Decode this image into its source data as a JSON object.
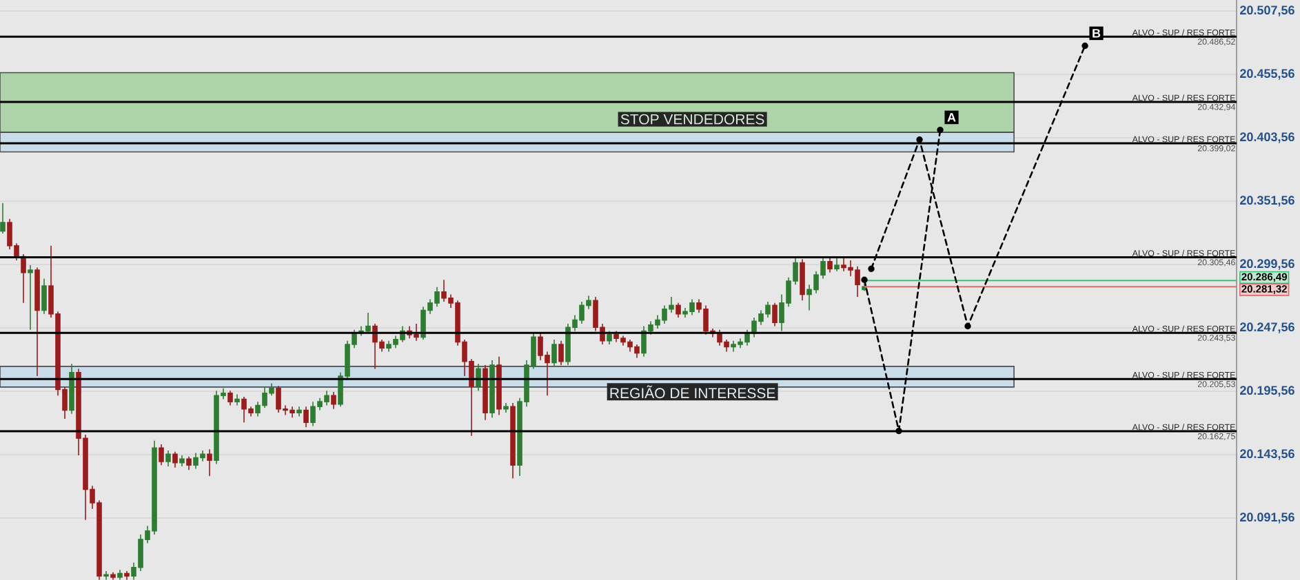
{
  "chart_data": {
    "type": "candlestick",
    "categories": [
      null,
      null,
      null,
      null,
      null,
      null,
      null,
      null,
      null,
      null,
      null,
      null,
      null,
      null,
      null,
      null,
      null,
      null,
      null,
      null,
      null,
      null,
      null,
      null,
      null,
      null,
      null,
      null,
      null,
      null,
      null,
      null,
      null,
      null,
      null,
      null,
      null,
      null,
      null,
      null,
      null,
      null,
      null,
      null,
      null,
      null,
      null,
      null,
      null,
      null,
      null,
      null,
      null,
      null,
      null,
      null,
      null,
      null,
      null,
      null,
      null,
      null,
      null,
      null,
      null,
      null,
      null,
      null,
      null,
      null,
      null,
      null,
      null,
      null,
      null,
      null,
      null,
      null,
      null,
      null,
      null,
      null,
      null,
      null,
      null,
      null,
      null,
      null,
      null,
      null,
      null,
      null,
      null,
      null,
      null,
      null,
      null,
      null,
      null,
      null,
      null,
      null,
      null,
      null,
      null,
      null,
      null,
      null,
      null,
      null,
      null,
      null,
      null,
      null,
      null,
      null,
      null,
      null,
      null,
      null,
      null,
      null,
      null,
      null,
      null,
      null,
      null,
      null,
      null,
      null,
      null,
      null,
      null,
      null,
      null,
      null,
      null,
      null,
      null,
      null,
      null,
      null,
      null,
      null,
      null,
      null,
      null,
      null,
      null,
      null,
      null,
      null,
      null,
      null,
      null,
      null,
      null,
      null,
      null,
      null,
      null,
      null,
      null,
      null,
      null,
      null,
      null,
      null,
      null,
      null,
      null,
      null,
      null,
      null,
      null,
      null,
      null,
      null,
      null,
      null
    ],
    "ohlc": [
      [
        20327,
        20350,
        20325,
        20334
      ],
      [
        20334,
        20337,
        20312,
        20315
      ],
      [
        20315,
        20317,
        20303,
        20306
      ],
      [
        20306,
        20308,
        20268,
        20293
      ],
      [
        20293,
        20299,
        20246,
        20295
      ],
      [
        20295,
        20297,
        20208,
        20262
      ],
      [
        20262,
        20288,
        20259,
        20282
      ],
      [
        20282,
        20315,
        20256,
        20259
      ],
      [
        20259,
        20261,
        20192,
        20197
      ],
      [
        20197,
        20199,
        20173,
        20180
      ],
      [
        20180,
        20218,
        20177,
        20211
      ],
      [
        20211,
        20214,
        20143,
        20157
      ],
      [
        20157,
        20160,
        20090,
        20115
      ],
      [
        20115,
        20118,
        20099,
        20104
      ],
      [
        20104,
        20106,
        20041,
        20044
      ],
      [
        20044,
        20048,
        20041,
        20045
      ],
      [
        20045,
        20047,
        20041,
        20043
      ],
      [
        20043,
        20049,
        20041,
        20046
      ],
      [
        20046,
        20048,
        20041,
        20044
      ],
      [
        20044,
        20055,
        20041,
        20051
      ],
      [
        20051,
        20078,
        20048,
        20074
      ],
      [
        20074,
        20085,
        20071,
        20081
      ],
      [
        20081,
        20155,
        20078,
        20149
      ],
      [
        20149,
        20152,
        20135,
        20138
      ],
      [
        20138,
        20147,
        20134,
        20144
      ],
      [
        20144,
        20146,
        20133,
        20137
      ],
      [
        20137,
        20143,
        20134,
        20140
      ],
      [
        20140,
        20142,
        20131,
        20135
      ],
      [
        20135,
        20145,
        20132,
        20141
      ],
      [
        20141,
        20147,
        20138,
        20144
      ],
      [
        20144,
        20148,
        20126,
        20139
      ],
      [
        20139,
        20196,
        20136,
        20192
      ],
      [
        20192,
        20198,
        20189,
        20194
      ],
      [
        20194,
        20196,
        20184,
        20187
      ],
      [
        20187,
        20193,
        20184,
        20189
      ],
      [
        20189,
        20191,
        20170,
        20181
      ],
      [
        20181,
        20183,
        20175,
        20178
      ],
      [
        20178,
        20187,
        20175,
        20184
      ],
      [
        20184,
        20199,
        20182,
        20194
      ],
      [
        20194,
        20202,
        20192,
        20198
      ],
      [
        20198,
        20200,
        20178,
        20181
      ],
      [
        20181,
        20184,
        20176,
        20180
      ],
      [
        20180,
        20183,
        20174,
        20178
      ],
      [
        20178,
        20183,
        20175,
        20180
      ],
      [
        20180,
        20183,
        20166,
        20170
      ],
      [
        20170,
        20187,
        20167,
        20183
      ],
      [
        20183,
        20190,
        20180,
        20187
      ],
      [
        20187,
        20196,
        20184,
        20192
      ],
      [
        20192,
        20195,
        20181,
        20185
      ],
      [
        20185,
        20211,
        20183,
        20208
      ],
      [
        20208,
        20237,
        20205,
        20234
      ],
      [
        20234,
        20246,
        20231,
        20243
      ],
      [
        20243,
        20249,
        20241,
        20245
      ],
      [
        20245,
        20260,
        20243,
        20249
      ],
      [
        20249,
        20251,
        20214,
        20236
      ],
      [
        20236,
        20238,
        20228,
        20231
      ],
      [
        20231,
        20237,
        20228,
        20234
      ],
      [
        20234,
        20241,
        20231,
        20238
      ],
      [
        20238,
        20249,
        20236,
        20245
      ],
      [
        20245,
        20249,
        20239,
        20242
      ],
      [
        20242,
        20251,
        20237,
        20240
      ],
      [
        20240,
        20265,
        20238,
        20262
      ],
      [
        20262,
        20271,
        20259,
        20268
      ],
      [
        20268,
        20281,
        20265,
        20277
      ],
      [
        20277,
        20287,
        20269,
        20272
      ],
      [
        20272,
        20275,
        20264,
        20268
      ],
      [
        20268,
        20270,
        20233,
        20236
      ],
      [
        20236,
        20238,
        20208,
        20220
      ],
      [
        20220,
        20222,
        20159,
        20200
      ],
      [
        20200,
        20218,
        20196,
        20214
      ],
      [
        20214,
        20217,
        20172,
        20178
      ],
      [
        20178,
        20221,
        20174,
        20217
      ],
      [
        20217,
        20224,
        20176,
        20181
      ],
      [
        20181,
        20186,
        20178,
        20183
      ],
      [
        20183,
        20186,
        20124,
        20135
      ],
      [
        20135,
        20190,
        20126,
        20187
      ],
      [
        20187,
        20221,
        20183,
        20217
      ],
      [
        20217,
        20244,
        20214,
        20240
      ],
      [
        20240,
        20243,
        20221,
        20225
      ],
      [
        20225,
        20228,
        20192,
        20219
      ],
      [
        20219,
        20238,
        20216,
        20234
      ],
      [
        20234,
        20237,
        20217,
        20220
      ],
      [
        20220,
        20251,
        20217,
        20248
      ],
      [
        20248,
        20258,
        20245,
        20254
      ],
      [
        20254,
        20269,
        20251,
        20266
      ],
      [
        20266,
        20274,
        20263,
        20270
      ],
      [
        20270,
        20273,
        20245,
        20248
      ],
      [
        20248,
        20251,
        20234,
        20237
      ],
      [
        20237,
        20245,
        20234,
        20242
      ],
      [
        20242,
        20245,
        20236,
        20239
      ],
      [
        20239,
        20241,
        20233,
        20236
      ],
      [
        20236,
        20238,
        20228,
        20232
      ],
      [
        20232,
        20234,
        20223,
        20227
      ],
      [
        20227,
        20249,
        20224,
        20245
      ],
      [
        20245,
        20253,
        20242,
        20250
      ],
      [
        20250,
        20258,
        20247,
        20254
      ],
      [
        20254,
        20266,
        20251,
        20263
      ],
      [
        20263,
        20273,
        20260,
        20266
      ],
      [
        20266,
        20268,
        20256,
        20259
      ],
      [
        20259,
        20264,
        20256,
        20261
      ],
      [
        20261,
        20271,
        20258,
        20268
      ],
      [
        20268,
        20271,
        20260,
        20263
      ],
      [
        20263,
        20266,
        20242,
        20245
      ],
      [
        20245,
        20247,
        20240,
        20243
      ],
      [
        20243,
        20246,
        20233,
        20236
      ],
      [
        20236,
        20238,
        20228,
        20232
      ],
      [
        20232,
        20237,
        20228,
        20234
      ],
      [
        20234,
        20239,
        20231,
        20236
      ],
      [
        20236,
        20246,
        20233,
        20243
      ],
      [
        20243,
        20256,
        20240,
        20253
      ],
      [
        20253,
        20262,
        20250,
        20259
      ],
      [
        20259,
        20269,
        20256,
        20266
      ],
      [
        20266,
        20268,
        20249,
        20252
      ],
      [
        20252,
        20275,
        20245,
        20268
      ],
      [
        20268,
        20289,
        20265,
        20286
      ],
      [
        20286,
        20305,
        20283,
        20301
      ],
      [
        20301,
        20304,
        20270,
        20275
      ],
      [
        20275,
        20283,
        20262,
        20279
      ],
      [
        20279,
        20294,
        20276,
        20291
      ],
      [
        20291,
        20305,
        20288,
        20302
      ],
      [
        20302,
        20305,
        20293,
        20296
      ],
      [
        20296,
        20305,
        20294,
        20299
      ],
      [
        20299,
        20305,
        20294,
        20297
      ],
      [
        20297,
        20303,
        20290,
        20295
      ],
      [
        20295,
        20298,
        20273,
        20283
      ],
      [
        20279,
        20284,
        20278,
        20281.32
      ],
      null,
      null,
      null,
      null,
      null,
      null,
      null,
      null,
      null,
      null,
      null,
      null,
      null,
      null,
      null,
      null,
      null,
      null,
      null,
      null,
      null,
      null,
      null,
      null,
      null,
      null,
      null,
      null,
      null,
      null,
      null,
      null,
      null,
      null,
      null,
      null,
      null,
      null,
      null,
      null,
      null,
      null,
      null,
      null,
      null,
      null,
      null,
      null,
      null,
      null,
      null,
      null,
      null,
      null
    ],
    "colors": [
      "#2e7d32",
      "#9b1c1c",
      "#9b1c1c",
      "#9b1c1c",
      "#2e7d32",
      "#9b1c1c",
      "#2e7d32",
      "#9b1c1c",
      "#9b1c1c",
      "#9b1c1c",
      "#2e7d32",
      "#9b1c1c",
      "#9b1c1c",
      "#9b1c1c",
      "#9b1c1c",
      "#2e7d32",
      "#9b1c1c",
      "#2e7d32",
      "#9b1c1c",
      "#2e7d32",
      "#2e7d32",
      "#2e7d32",
      "#2e7d32",
      "#9b1c1c",
      "#2e7d32",
      "#9b1c1c",
      "#2e7d32",
      "#9b1c1c",
      "#2e7d32",
      "#2e7d32",
      "#9b1c1c",
      "#2e7d32",
      "#2e7d32",
      "#9b1c1c",
      "#2e7d32",
      "#9b1c1c",
      "#9b1c1c",
      "#2e7d32",
      "#2e7d32",
      "#2e7d32",
      "#9b1c1c",
      "#9b1c1c",
      "#9b1c1c",
      "#2e7d32",
      "#9b1c1c",
      "#2e7d32",
      "#2e7d32",
      "#2e7d32",
      "#9b1c1c",
      "#2e7d32",
      "#2e7d32",
      "#2e7d32",
      "#2e7d32",
      "#2e7d32",
      "#9b1c1c",
      "#9b1c1c",
      "#2e7d32",
      "#2e7d32",
      "#2e7d32",
      "#9b1c1c",
      "#9b1c1c",
      "#2e7d32",
      "#2e7d32",
      "#2e7d32",
      "#9b1c1c",
      "#9b1c1c",
      "#9b1c1c",
      "#9b1c1c",
      "#9b1c1c",
      "#2e7d32",
      "#9b1c1c",
      "#2e7d32",
      "#9b1c1c",
      "#2e7d32",
      "#9b1c1c",
      "#2e7d32",
      "#2e7d32",
      "#2e7d32",
      "#9b1c1c",
      "#9b1c1c",
      "#2e7d32",
      "#9b1c1c",
      "#2e7d32",
      "#2e7d32",
      "#2e7d32",
      "#2e7d32",
      "#9b1c1c",
      "#9b1c1c",
      "#2e7d32",
      "#9b1c1c",
      "#9b1c1c",
      "#9b1c1c",
      "#9b1c1c",
      "#2e7d32",
      "#2e7d32",
      "#2e7d32",
      "#2e7d32",
      "#2e7d32",
      "#9b1c1c",
      "#2e7d32",
      "#2e7d32",
      "#9b1c1c",
      "#9b1c1c",
      "#9b1c1c",
      "#9b1c1c",
      "#9b1c1c",
      "#2e7d32",
      "#2e7d32",
      "#2e7d32",
      "#2e7d32",
      "#2e7d32",
      "#2e7d32",
      "#9b1c1c",
      "#2e7d32",
      "#2e7d32",
      "#2e7d32",
      "#9b1c1c",
      "#2e7d32",
      "#2e7d32",
      "#2e7d32",
      "#9b1c1c",
      "#2e7d32",
      "#9b1c1c",
      "#9b1c1c",
      "#9b1c1c",
      "#2e7d32",
      null,
      null,
      null,
      null,
      null,
      null,
      null,
      null,
      null,
      null,
      null,
      null,
      null,
      null,
      null,
      null,
      null,
      null,
      null,
      null,
      null,
      null,
      null,
      null,
      null,
      null,
      null,
      null,
      null,
      null,
      null,
      null,
      null,
      null,
      null,
      null,
      null,
      null,
      null,
      null,
      null,
      null,
      null,
      null,
      null,
      null,
      null,
      null,
      null,
      null,
      null,
      null,
      null,
      null
    ],
    "series": [
      {
        "type": "line",
        "name": "A",
        "color": "#000000",
        "line_style": "dashed",
        "marker": "circle",
        "values": [
          null,
          null,
          null,
          null,
          null,
          null,
          null,
          null,
          null,
          null,
          null,
          null,
          null,
          null,
          null,
          null,
          null,
          null,
          null,
          null,
          null,
          null,
          null,
          null,
          null,
          null,
          null,
          null,
          null,
          null,
          null,
          null,
          null,
          null,
          null,
          null,
          null,
          null,
          null,
          null,
          null,
          null,
          null,
          null,
          null,
          null,
          null,
          null,
          null,
          null,
          null,
          null,
          null,
          null,
          null,
          null,
          null,
          null,
          null,
          null,
          null,
          null,
          null,
          null,
          null,
          null,
          null,
          null,
          null,
          null,
          null,
          null,
          null,
          null,
          null,
          null,
          null,
          null,
          null,
          null,
          null,
          null,
          null,
          null,
          null,
          null,
          null,
          null,
          null,
          null,
          null,
          null,
          null,
          null,
          null,
          null,
          null,
          null,
          null,
          null,
          null,
          null,
          null,
          null,
          null,
          null,
          null,
          null,
          null,
          null,
          null,
          null,
          null,
          null,
          null,
          null,
          null,
          null,
          null,
          null,
          null,
          null,
          null,
          null,
          null,
          20287,
          null,
          null,
          null,
          null,
          20163,
          null,
          null,
          null,
          null,
          null,
          20410,
          null,
          null,
          null,
          null,
          null,
          null,
          null,
          null,
          null,
          null,
          null,
          null,
          null,
          null,
          null,
          null,
          null,
          null,
          null,
          null,
          null,
          null,
          null,
          null,
          null,
          null,
          null,
          null,
          null,
          null,
          null,
          null,
          null,
          null,
          null,
          null,
          null,
          null,
          null,
          null,
          null,
          null,
          null
        ]
      },
      {
        "type": "line",
        "name": "B",
        "color": "#000000",
        "line_style": "dashed",
        "marker": "circle",
        "values": [
          null,
          null,
          null,
          null,
          null,
          null,
          null,
          null,
          null,
          null,
          null,
          null,
          null,
          null,
          null,
          null,
          null,
          null,
          null,
          null,
          null,
          null,
          null,
          null,
          null,
          null,
          null,
          null,
          null,
          null,
          null,
          null,
          null,
          null,
          null,
          null,
          null,
          null,
          null,
          null,
          null,
          null,
          null,
          null,
          null,
          null,
          null,
          null,
          null,
          null,
          null,
          null,
          null,
          null,
          null,
          null,
          null,
          null,
          null,
          null,
          null,
          null,
          null,
          null,
          null,
          null,
          null,
          null,
          null,
          null,
          null,
          null,
          null,
          null,
          null,
          null,
          null,
          null,
          null,
          null,
          null,
          null,
          null,
          null,
          null,
          null,
          null,
          null,
          null,
          null,
          null,
          null,
          null,
          null,
          null,
          null,
          null,
          null,
          null,
          null,
          null,
          null,
          null,
          null,
          null,
          null,
          null,
          null,
          null,
          null,
          null,
          null,
          null,
          null,
          null,
          null,
          null,
          null,
          null,
          null,
          null,
          null,
          null,
          null,
          null,
          null,
          20296,
          null,
          null,
          null,
          null,
          null,
          null,
          20402,
          null,
          null,
          null,
          null,
          null,
          null,
          20249,
          null,
          null,
          null,
          null,
          null,
          null,
          null,
          null,
          null,
          null,
          null,
          null,
          null,
          null,
          null,
          null,
          20479,
          null,
          null,
          null,
          null,
          null,
          null,
          null,
          null,
          null,
          null,
          null,
          null,
          null,
          null,
          null,
          null,
          null,
          null,
          null,
          null,
          null,
          null
        ]
      }
    ],
    "ylim": [
      20040.7,
      20516.6
    ],
    "yticks": [
      {
        "value": 20091.56,
        "label": "20.091,56"
      },
      {
        "value": 20143.56,
        "label": "20.143,56"
      },
      {
        "value": 20195.56,
        "label": "20.195,56"
      },
      {
        "value": 20247.56,
        "label": "20.247,56"
      },
      {
        "value": 20299.56,
        "label": "20.299,56"
      },
      {
        "value": 20351.56,
        "label": "20.351,56"
      },
      {
        "value": 20403.56,
        "label": "20.403,56"
      },
      {
        "value": 20455.56,
        "label": "20.455,56"
      },
      {
        "value": 20507.56,
        "label": "20.507,56"
      }
    ],
    "ref_lines": [
      {
        "axis": "y",
        "value": 20486.52,
        "label": "ALVO - SUP / RES FORTE",
        "color": "#000000"
      },
      {
        "axis": "y",
        "value": 20432.94,
        "label": "ALVO - SUP / RES FORTE",
        "color": "#000000"
      },
      {
        "axis": "y",
        "value": 20399.02,
        "label": "ALVO - SUP / RES FORTE",
        "color": "#000000"
      },
      {
        "axis": "y",
        "value": 20305.46,
        "label": "ALVO - SUP / RES FORTE",
        "color": "#000000"
      },
      {
        "axis": "y",
        "value": 20243.53,
        "label": "ALVO - SUP / RES FORTE",
        "color": "#000000"
      },
      {
        "axis": "y",
        "value": 20205.53,
        "label": "ALVO - SUP / RES FORTE",
        "color": "#000000"
      },
      {
        "axis": "y",
        "value": 20162.75,
        "label": "ALVO - SUP / RES FORTE",
        "color": "#000000"
      },
      {
        "axis": "y",
        "value": 20286.49,
        "label": "20.286,49",
        "color": "#3cbf7a"
      },
      {
        "axis": "y",
        "value": 20281.32,
        "label": "20.281,32",
        "color": "#e06a6a"
      }
    ],
    "bands": [
      {
        "axis": "y",
        "from": 20408,
        "to": 20457,
        "label": "STOP VENDEDORES",
        "color": "#acd4a8"
      },
      {
        "axis": "y",
        "from": 20392,
        "to": 20408,
        "color": "#c8dcea"
      },
      {
        "axis": "y",
        "from": 20199,
        "to": 20216,
        "label": "REGIÃO DE INTERESSE",
        "color": "#c8dcea"
      }
    ],
    "annotations": [
      {
        "text": "20.486,52",
        "y": 20486.52
      },
      {
        "text": "20.432,94",
        "y": 20432.94
      },
      {
        "text": "20.399,02",
        "y": 20399.02
      },
      {
        "text": "20.305,46",
        "y": 20305.46
      },
      {
        "text": "20.243,53",
        "y": 20243.53
      },
      {
        "text": "20.205,53",
        "y": 20205.53
      },
      {
        "text": "20.162,75",
        "y": 20162.75
      }
    ],
    "grid": "y",
    "tick_labels": "y"
  }
}
